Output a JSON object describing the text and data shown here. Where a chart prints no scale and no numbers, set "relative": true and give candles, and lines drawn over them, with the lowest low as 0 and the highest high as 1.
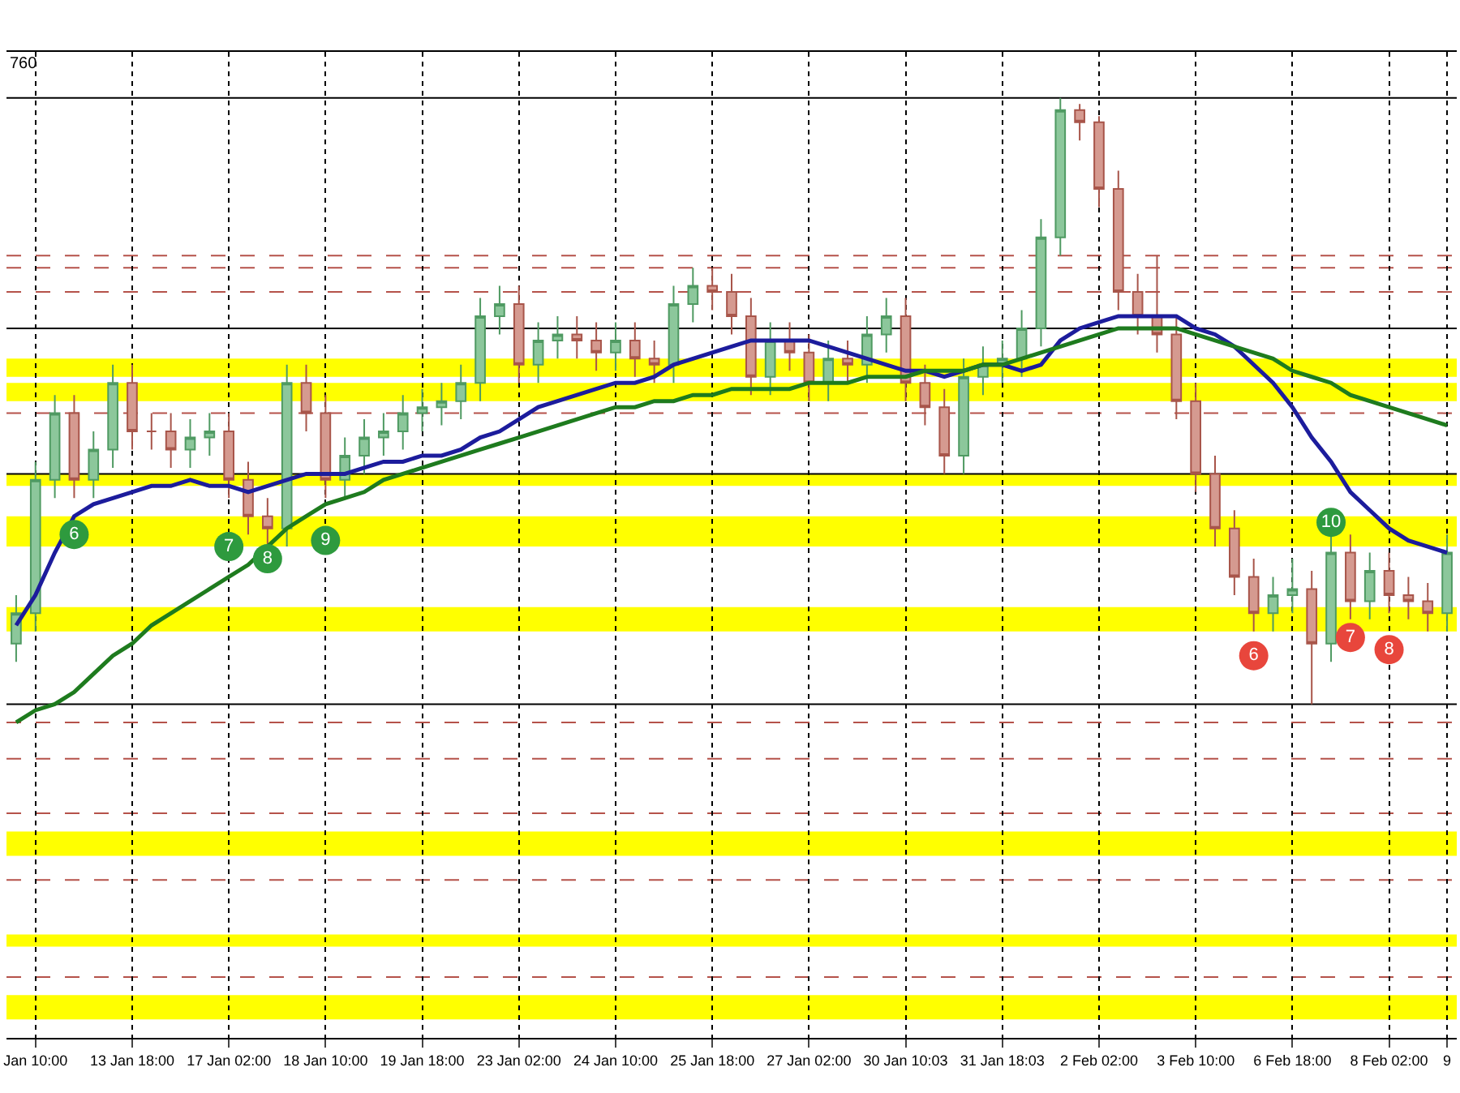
{
  "chart_data": {
    "type": "candlestick",
    "relative": true,
    "grid": "x",
    "categories": [
      null,
      "Jan 10:00",
      null,
      null,
      null,
      null,
      "13 Jan 18:00",
      null,
      null,
      null,
      null,
      "17 Jan 02:00",
      null,
      null,
      null,
      null,
      "18 Jan 10:00",
      null,
      null,
      null,
      null,
      "19 Jan 18:00",
      null,
      null,
      null,
      null,
      "23 Jan 02:00",
      null,
      null,
      null,
      null,
      "24 Jan 10:00",
      null,
      null,
      null,
      null,
      "25 Jan 18:00",
      null,
      null,
      null,
      null,
      "27 Jan 02:00",
      null,
      null,
      null,
      null,
      "30 Jan 10:03",
      null,
      null,
      null,
      null,
      "31 Jan 18:03",
      null,
      null,
      null,
      null,
      "2 Feb 02:00",
      null,
      null,
      null,
      null,
      "3 Feb 10:00",
      null,
      null,
      null,
      null,
      "6 Feb 18:00",
      null,
      null,
      null,
      null,
      "8 Feb 02:00",
      null,
      null,
      "9"
    ],
    "ohlc": [
      [
        0.1,
        0.18,
        0.07,
        0.15
      ],
      [
        0.15,
        0.4,
        0.12,
        0.37
      ],
      [
        0.37,
        0.51,
        0.34,
        0.48
      ],
      [
        0.48,
        0.51,
        0.34,
        0.37
      ],
      [
        0.37,
        0.45,
        0.34,
        0.42
      ],
      [
        0.42,
        0.56,
        0.39,
        0.53
      ],
      [
        0.53,
        0.56,
        0.42,
        0.45
      ],
      [
        0.45,
        0.48,
        0.42,
        0.45
      ],
      [
        0.45,
        0.48,
        0.39,
        0.42
      ],
      [
        0.42,
        0.47,
        0.39,
        0.44
      ],
      [
        0.44,
        0.48,
        0.41,
        0.45
      ],
      [
        0.45,
        0.48,
        0.34,
        0.37
      ],
      [
        0.37,
        0.4,
        0.28,
        0.31
      ],
      [
        0.31,
        0.34,
        0.26,
        0.29
      ],
      [
        0.29,
        0.56,
        0.26,
        0.53
      ],
      [
        0.53,
        0.56,
        0.45,
        0.48
      ],
      [
        0.48,
        0.51,
        0.34,
        0.37
      ],
      [
        0.37,
        0.44,
        0.34,
        0.41
      ],
      [
        0.41,
        0.47,
        0.38,
        0.44
      ],
      [
        0.44,
        0.48,
        0.41,
        0.45
      ],
      [
        0.45,
        0.51,
        0.42,
        0.48
      ],
      [
        0.48,
        0.52,
        0.45,
        0.49
      ],
      [
        0.49,
        0.53,
        0.46,
        0.5
      ],
      [
        0.5,
        0.56,
        0.47,
        0.53
      ],
      [
        0.53,
        0.67,
        0.5,
        0.64
      ],
      [
        0.64,
        0.69,
        0.61,
        0.66
      ],
      [
        0.66,
        0.69,
        0.53,
        0.56
      ],
      [
        0.56,
        0.63,
        0.53,
        0.6
      ],
      [
        0.6,
        0.64,
        0.57,
        0.61
      ],
      [
        0.61,
        0.64,
        0.57,
        0.6
      ],
      [
        0.6,
        0.63,
        0.55,
        0.58
      ],
      [
        0.58,
        0.63,
        0.55,
        0.6
      ],
      [
        0.6,
        0.63,
        0.54,
        0.57
      ],
      [
        0.57,
        0.6,
        0.53,
        0.56
      ],
      [
        0.56,
        0.69,
        0.53,
        0.66
      ],
      [
        0.66,
        0.72,
        0.63,
        0.69
      ],
      [
        0.69,
        0.72,
        0.65,
        0.68
      ],
      [
        0.68,
        0.71,
        0.61,
        0.64
      ],
      [
        0.64,
        0.67,
        0.51,
        0.54
      ],
      [
        0.54,
        0.63,
        0.51,
        0.6
      ],
      [
        0.6,
        0.63,
        0.55,
        0.58
      ],
      [
        0.58,
        0.61,
        0.5,
        0.53
      ],
      [
        0.53,
        0.6,
        0.5,
        0.57
      ],
      [
        0.57,
        0.6,
        0.53,
        0.56
      ],
      [
        0.56,
        0.64,
        0.53,
        0.61
      ],
      [
        0.61,
        0.67,
        0.58,
        0.64
      ],
      [
        0.64,
        0.67,
        0.5,
        0.53
      ],
      [
        0.53,
        0.56,
        0.46,
        0.49
      ],
      [
        0.49,
        0.52,
        0.38,
        0.41
      ],
      [
        0.41,
        0.57,
        0.38,
        0.54
      ],
      [
        0.54,
        0.59,
        0.51,
        0.56
      ],
      [
        0.56,
        0.6,
        0.53,
        0.57
      ],
      [
        0.57,
        0.65,
        0.54,
        0.62
      ],
      [
        0.62,
        0.8,
        0.59,
        0.77
      ],
      [
        0.77,
        1.0,
        0.74,
        0.98
      ],
      [
        0.98,
        0.99,
        0.93,
        0.96
      ],
      [
        0.96,
        0.97,
        0.82,
        0.85
      ],
      [
        0.85,
        0.88,
        0.65,
        0.68
      ],
      [
        0.68,
        0.71,
        0.61,
        0.64
      ],
      [
        0.64,
        0.74,
        0.58,
        0.61
      ],
      [
        0.61,
        0.64,
        0.47,
        0.5
      ],
      [
        0.5,
        0.53,
        0.35,
        0.38
      ],
      [
        0.38,
        0.41,
        0.26,
        0.29
      ],
      [
        0.29,
        0.32,
        0.18,
        0.21
      ],
      [
        0.21,
        0.24,
        0.12,
        0.15
      ],
      [
        0.15,
        0.21,
        0.12,
        0.18
      ],
      [
        0.18,
        0.24,
        0.15,
        0.19
      ],
      [
        0.19,
        0.22,
        0,
        0.1
      ],
      [
        0.1,
        0.3,
        0.07,
        0.25
      ],
      [
        0.25,
        0.28,
        0.14,
        0.17
      ],
      [
        0.17,
        0.25,
        0.14,
        0.22
      ],
      [
        0.22,
        0.25,
        0.15,
        0.18
      ],
      [
        0.18,
        0.21,
        0.14,
        0.17
      ],
      [
        0.17,
        0.2,
        0.12,
        0.15
      ],
      [
        0.15,
        0.28,
        0.12,
        0.25
      ]
    ],
    "series": [
      {
        "type": "line",
        "color": "#1c1c9c",
        "values": [
          0.13,
          0.18,
          0.25,
          0.31,
          0.33,
          0.34,
          0.35,
          0.36,
          0.36,
          0.37,
          0.36,
          0.36,
          0.35,
          0.36,
          0.37,
          0.38,
          0.38,
          0.38,
          0.39,
          0.4,
          0.4,
          0.41,
          0.41,
          0.42,
          0.44,
          0.45,
          0.47,
          0.49,
          0.5,
          0.51,
          0.52,
          0.53,
          0.53,
          0.54,
          0.56,
          0.57,
          0.58,
          0.59,
          0.6,
          0.6,
          0.6,
          0.6,
          0.59,
          0.58,
          0.57,
          0.56,
          0.55,
          0.55,
          0.54,
          0.55,
          0.56,
          0.56,
          0.55,
          0.56,
          0.6,
          0.62,
          0.63,
          0.64,
          0.64,
          0.64,
          0.64,
          0.62,
          0.61,
          0.59,
          0.56,
          0.53,
          0.49,
          0.44,
          0.4,
          0.35,
          0.32,
          0.29,
          0.27,
          0.26,
          0.25
        ]
      },
      {
        "type": "line",
        "color": "#1e7b1e",
        "values": [
          -0.03,
          -0.01,
          0.0,
          0.02,
          0.05,
          0.08,
          0.1,
          0.13,
          0.15,
          0.17,
          0.19,
          0.21,
          0.23,
          0.26,
          0.29,
          0.31,
          0.33,
          0.34,
          0.35,
          0.37,
          0.38,
          0.39,
          0.4,
          0.41,
          0.42,
          0.43,
          0.44,
          0.45,
          0.46,
          0.47,
          0.48,
          0.49,
          0.49,
          0.5,
          0.5,
          0.51,
          0.51,
          0.52,
          0.52,
          0.52,
          0.52,
          0.53,
          0.53,
          0.53,
          0.54,
          0.54,
          0.54,
          0.55,
          0.55,
          0.55,
          0.56,
          0.56,
          0.57,
          0.58,
          0.59,
          0.6,
          0.61,
          0.62,
          0.62,
          0.62,
          0.62,
          0.61,
          0.6,
          0.59,
          0.58,
          0.57,
          0.55,
          0.54,
          0.53,
          0.51,
          0.5,
          0.49,
          0.48,
          0.47,
          0.46
        ]
      },
      {
        "type": "scatter",
        "marker": "circle",
        "name": "6",
        "color": "#2e9a3e",
        "values": [
          null,
          null,
          null,
          0.28,
          null,
          null,
          null,
          null,
          null,
          null,
          null,
          null,
          null,
          null,
          null,
          null,
          null,
          null,
          null,
          null,
          null,
          null,
          null,
          null,
          null,
          null,
          null,
          null,
          null,
          null,
          null,
          null,
          null,
          null,
          null,
          null,
          null,
          null,
          null,
          null,
          null,
          null,
          null,
          null,
          null,
          null,
          null,
          null,
          null,
          null,
          null,
          null,
          null,
          null,
          null,
          null,
          null,
          null,
          null,
          null,
          null,
          null,
          null,
          null,
          null,
          null,
          null,
          null,
          null,
          null,
          null,
          null,
          null,
          null,
          null
        ]
      },
      {
        "type": "scatter",
        "marker": "circle",
        "name": "7",
        "color": "#2e9a3e",
        "values": [
          null,
          null,
          null,
          null,
          null,
          null,
          null,
          null,
          null,
          null,
          null,
          0.26,
          null,
          null,
          null,
          null,
          null,
          null,
          null,
          null,
          null,
          null,
          null,
          null,
          null,
          null,
          null,
          null,
          null,
          null,
          null,
          null,
          null,
          null,
          null,
          null,
          null,
          null,
          null,
          null,
          null,
          null,
          null,
          null,
          null,
          null,
          null,
          null,
          null,
          null,
          null,
          null,
          null,
          null,
          null,
          null,
          null,
          null,
          null,
          null,
          null,
          null,
          null,
          null,
          null,
          null,
          null,
          null,
          null,
          null,
          null,
          null,
          null,
          null,
          null
        ]
      },
      {
        "type": "scatter",
        "marker": "circle",
        "name": "8",
        "color": "#2e9a3e",
        "values": [
          null,
          null,
          null,
          null,
          null,
          null,
          null,
          null,
          null,
          null,
          null,
          null,
          null,
          0.24,
          null,
          null,
          null,
          null,
          null,
          null,
          null,
          null,
          null,
          null,
          null,
          null,
          null,
          null,
          null,
          null,
          null,
          null,
          null,
          null,
          null,
          null,
          null,
          null,
          null,
          null,
          null,
          null,
          null,
          null,
          null,
          null,
          null,
          null,
          null,
          null,
          null,
          null,
          null,
          null,
          null,
          null,
          null,
          null,
          null,
          null,
          null,
          null,
          null,
          null,
          null,
          null,
          null,
          null,
          null,
          null,
          null,
          null,
          null,
          null,
          null
        ]
      },
      {
        "type": "scatter",
        "marker": "circle",
        "name": "9",
        "color": "#2e9a3e",
        "values": [
          null,
          null,
          null,
          null,
          null,
          null,
          null,
          null,
          null,
          null,
          null,
          null,
          null,
          null,
          null,
          null,
          0.27,
          null,
          null,
          null,
          null,
          null,
          null,
          null,
          null,
          null,
          null,
          null,
          null,
          null,
          null,
          null,
          null,
          null,
          null,
          null,
          null,
          null,
          null,
          null,
          null,
          null,
          null,
          null,
          null,
          null,
          null,
          null,
          null,
          null,
          null,
          null,
          null,
          null,
          null,
          null,
          null,
          null,
          null,
          null,
          null,
          null,
          null,
          null,
          null,
          null,
          null,
          null,
          null,
          null,
          null,
          null,
          null,
          null,
          null
        ]
      },
      {
        "type": "scatter",
        "marker": "circle",
        "name": "10",
        "color": "#2e9a3e",
        "values": [
          null,
          null,
          null,
          null,
          null,
          null,
          null,
          null,
          null,
          null,
          null,
          null,
          null,
          null,
          null,
          null,
          null,
          null,
          null,
          null,
          null,
          null,
          null,
          null,
          null,
          null,
          null,
          null,
          null,
          null,
          null,
          null,
          null,
          null,
          null,
          null,
          null,
          null,
          null,
          null,
          null,
          null,
          null,
          null,
          null,
          null,
          null,
          null,
          null,
          null,
          null,
          null,
          null,
          null,
          null,
          null,
          null,
          null,
          null,
          null,
          null,
          null,
          null,
          null,
          null,
          null,
          null,
          null,
          0.3,
          null,
          null,
          null,
          null,
          null,
          null
        ]
      },
      {
        "type": "scatter",
        "marker": "circle",
        "name": "6",
        "color": "#e8463c",
        "values": [
          null,
          null,
          null,
          null,
          null,
          null,
          null,
          null,
          null,
          null,
          null,
          null,
          null,
          null,
          null,
          null,
          null,
          null,
          null,
          null,
          null,
          null,
          null,
          null,
          null,
          null,
          null,
          null,
          null,
          null,
          null,
          null,
          null,
          null,
          null,
          null,
          null,
          null,
          null,
          null,
          null,
          null,
          null,
          null,
          null,
          null,
          null,
          null,
          null,
          null,
          null,
          null,
          null,
          null,
          null,
          null,
          null,
          null,
          null,
          null,
          null,
          null,
          null,
          null,
          0.08,
          null,
          null,
          null,
          null,
          null,
          null,
          null,
          null,
          null,
          null
        ]
      },
      {
        "type": "scatter",
        "marker": "circle",
        "name": "7",
        "color": "#e8463c",
        "values": [
          null,
          null,
          null,
          null,
          null,
          null,
          null,
          null,
          null,
          null,
          null,
          null,
          null,
          null,
          null,
          null,
          null,
          null,
          null,
          null,
          null,
          null,
          null,
          null,
          null,
          null,
          null,
          null,
          null,
          null,
          null,
          null,
          null,
          null,
          null,
          null,
          null,
          null,
          null,
          null,
          null,
          null,
          null,
          null,
          null,
          null,
          null,
          null,
          null,
          null,
          null,
          null,
          null,
          null,
          null,
          null,
          null,
          null,
          null,
          null,
          null,
          null,
          null,
          null,
          null,
          null,
          null,
          null,
          null,
          0.11,
          null,
          null,
          null,
          null,
          null
        ]
      },
      {
        "type": "scatter",
        "marker": "circle",
        "name": "8",
        "color": "#e8463c",
        "values": [
          null,
          null,
          null,
          null,
          null,
          null,
          null,
          null,
          null,
          null,
          null,
          null,
          null,
          null,
          null,
          null,
          null,
          null,
          null,
          null,
          null,
          null,
          null,
          null,
          null,
          null,
          null,
          null,
          null,
          null,
          null,
          null,
          null,
          null,
          null,
          null,
          null,
          null,
          null,
          null,
          null,
          null,
          null,
          null,
          null,
          null,
          null,
          null,
          null,
          null,
          null,
          null,
          null,
          null,
          null,
          null,
          null,
          null,
          null,
          null,
          null,
          null,
          null,
          null,
          null,
          null,
          null,
          null,
          null,
          null,
          null,
          0.09,
          null,
          null,
          null
        ]
      }
    ],
    "bands": [
      {
        "axis": "y",
        "from": 0.54,
        "to": 0.57,
        "color": "#ffff00"
      },
      {
        "axis": "y",
        "from": 0.5,
        "to": 0.53,
        "color": "#ffff00"
      },
      {
        "axis": "y",
        "from": 0.36,
        "to": 0.38,
        "color": "#ffff00"
      },
      {
        "axis": "y",
        "from": 0.26,
        "to": 0.31,
        "color": "#ffff00"
      },
      {
        "axis": "y",
        "from": 0.12,
        "to": 0.16,
        "color": "#ffff00"
      },
      {
        "axis": "y",
        "from": -0.25,
        "to": -0.21,
        "color": "#ffff00"
      },
      {
        "axis": "y",
        "from": -0.4,
        "to": -0.38,
        "color": "#ffff00"
      },
      {
        "axis": "y",
        "from": -0.52,
        "to": -0.48,
        "color": "#ffff00"
      }
    ],
    "ref_lines": [
      {
        "axis": "y",
        "value": 0.74,
        "color": "#b5524a",
        "line_style": "dashed"
      },
      {
        "axis": "y",
        "value": 0.72,
        "color": "#b5524a",
        "line_style": "dashed"
      },
      {
        "axis": "y",
        "value": 0.68,
        "color": "#b5524a",
        "line_style": "dashed"
      },
      {
        "axis": "y",
        "value": 0.48,
        "color": "#b5524a",
        "line_style": "dashed"
      },
      {
        "axis": "y",
        "value": -0.03,
        "color": "#b5524a",
        "line_style": "dashed"
      },
      {
        "axis": "y",
        "value": -0.09,
        "color": "#b5524a",
        "line_style": "dashed"
      },
      {
        "axis": "y",
        "value": -0.18,
        "color": "#b5524a",
        "line_style": "dashed"
      },
      {
        "axis": "y",
        "value": -0.29,
        "color": "#b5524a",
        "line_style": "dashed"
      },
      {
        "axis": "y",
        "value": -0.45,
        "color": "#b5524a",
        "line_style": "dashed"
      },
      {
        "axis": "y",
        "value": 1.0,
        "color": "#000000",
        "line_style": "solid"
      },
      {
        "axis": "y",
        "value": 0.62,
        "color": "#000000",
        "line_style": "solid"
      },
      {
        "axis": "y",
        "value": 0.38,
        "color": "#000000",
        "line_style": "solid"
      },
      {
        "axis": "y",
        "value": 0,
        "color": "#000000",
        "line_style": "solid"
      }
    ],
    "annotations": [
      "760"
    ]
  }
}
